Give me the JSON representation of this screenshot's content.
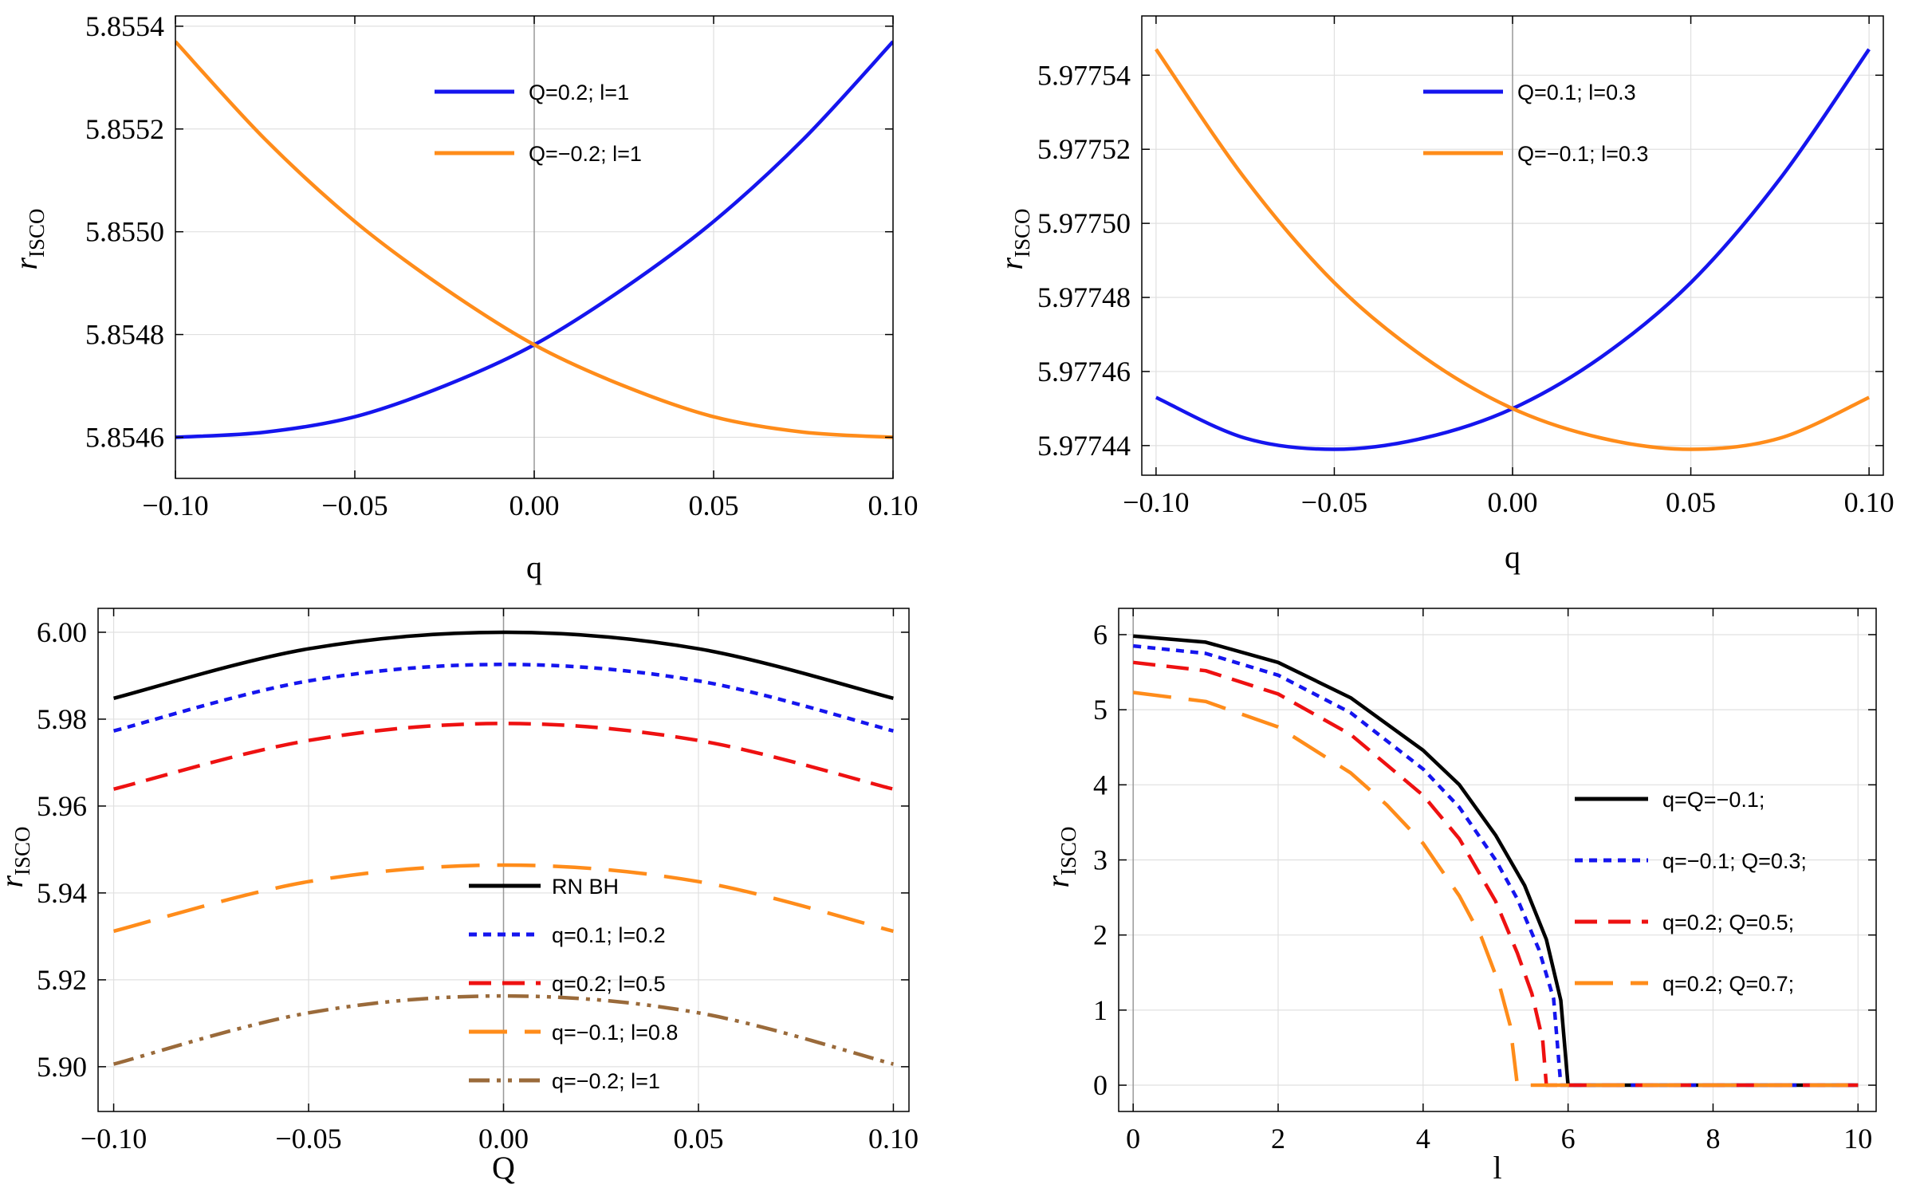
{
  "chart_data": [
    {
      "type": "line",
      "ylabel": "r",
      "ylabel_sub": "ISCO",
      "xlabel": "q",
      "xlim": [
        -0.1,
        0.1
      ],
      "ylim": [
        5.85452,
        5.85542
      ],
      "xticks": [
        -0.1,
        -0.05,
        0.0,
        0.05,
        0.1
      ],
      "xtick_labels": [
        "−0.10",
        "−0.05",
        "0.00",
        "0.05",
        "0.10"
      ],
      "yticks": [
        5.8546,
        5.8548,
        5.855,
        5.8552,
        5.8554
      ],
      "ytick_labels": [
        "5.8546",
        "5.8548",
        "5.8550",
        "5.8552",
        "5.8554"
      ],
      "grid": true,
      "legend_position": "top-center",
      "series": [
        {
          "name": "Q=0.2; l=1",
          "color": "#1515ee",
          "dash": "solid",
          "x": [
            -0.1,
            -0.075,
            -0.05,
            -0.025,
            0.0,
            0.025,
            0.05,
            0.075,
            0.1
          ],
          "values": [
            5.8546,
            5.85461,
            5.85464,
            5.8547,
            5.85478,
            5.85489,
            5.85502,
            5.85518,
            5.85537
          ]
        },
        {
          "name": "Q=−0.2; l=1",
          "color": "#ff8c1a",
          "dash": "solid",
          "x": [
            -0.1,
            -0.075,
            -0.05,
            -0.025,
            0.0,
            0.025,
            0.05,
            0.075,
            0.1
          ],
          "values": [
            5.85537,
            5.85518,
            5.85502,
            5.85489,
            5.85478,
            5.8547,
            5.85464,
            5.85461,
            5.8546
          ]
        }
      ]
    },
    {
      "type": "line",
      "ylabel": "r",
      "ylabel_sub": "ISCO",
      "xlabel": "q",
      "xlim": [
        -0.104,
        0.104
      ],
      "ylim": [
        5.977432,
        5.977556
      ],
      "xticks": [
        -0.1,
        -0.05,
        0.0,
        0.05,
        0.1
      ],
      "xtick_labels": [
        "−0.10",
        "−0.05",
        "0.00",
        "0.05",
        "0.10"
      ],
      "yticks": [
        5.97744,
        5.97746,
        5.97748,
        5.9775,
        5.97752,
        5.97754
      ],
      "ytick_labels": [
        "5.97744",
        "5.97746",
        "5.97748",
        "5.97750",
        "5.97752",
        "5.97754"
      ],
      "grid": true,
      "legend_position": "top-center",
      "series": [
        {
          "name": "Q=0.1; l=0.3",
          "color": "#1515ee",
          "dash": "solid",
          "x": [
            -0.1,
            -0.075,
            -0.05,
            -0.025,
            0.0,
            0.025,
            0.05,
            0.075,
            0.1
          ],
          "values": [
            5.977453,
            5.977442,
            5.977439,
            5.977442,
            5.97745,
            5.977464,
            5.977484,
            5.977512,
            5.977547
          ]
        },
        {
          "name": "Q=−0.1; l=0.3",
          "color": "#ff8c1a",
          "dash": "solid",
          "x": [
            -0.1,
            -0.075,
            -0.05,
            -0.025,
            0.0,
            0.025,
            0.05,
            0.075,
            0.1
          ],
          "values": [
            5.977547,
            5.977512,
            5.977484,
            5.977464,
            5.97745,
            5.977442,
            5.977439,
            5.977442,
            5.977453
          ]
        }
      ]
    },
    {
      "type": "line",
      "ylabel": "r",
      "ylabel_sub": "ISCO",
      "xlabel": "Q",
      "xlim": [
        -0.104,
        0.104
      ],
      "ylim": [
        5.8897,
        6.0055
      ],
      "xticks": [
        -0.1,
        -0.05,
        0.0,
        0.05,
        0.1
      ],
      "xtick_labels": [
        "−0.10",
        "−0.05",
        "0.00",
        "0.05",
        "0.10"
      ],
      "yticks": [
        5.9,
        5.92,
        5.94,
        5.96,
        5.98,
        6.0
      ],
      "ytick_labels": [
        "5.90",
        "5.92",
        "5.94",
        "5.96",
        "5.98",
        "6.00"
      ],
      "grid": true,
      "legend_position": "bottom-center",
      "series": [
        {
          "name": "RN BH",
          "color": "#000000",
          "dash": "solid",
          "x": [
            -0.1,
            -0.05,
            0.0,
            0.05,
            0.1
          ],
          "values": [
            5.9848,
            5.9962,
            6.0,
            5.9962,
            5.9848
          ]
        },
        {
          "name": "q=0.1; l=0.2",
          "color": "#1515ee",
          "dash": "dotted",
          "x": [
            -0.1,
            -0.05,
            0.0,
            0.05,
            0.1
          ],
          "values": [
            5.9773,
            5.9888,
            5.9926,
            5.9888,
            5.9773
          ]
        },
        {
          "name": "q=0.2; l=0.5",
          "color": "#ee1111",
          "dash": "dashed",
          "x": [
            -0.1,
            -0.05,
            0.0,
            0.05,
            0.1
          ],
          "values": [
            5.9639,
            5.9751,
            5.979,
            5.9751,
            5.9639
          ]
        },
        {
          "name": "q=−0.1; l=0.8",
          "color": "#ff8c1a",
          "dash": "longdash",
          "x": [
            -0.1,
            -0.05,
            0.0,
            0.05,
            0.1
          ],
          "values": [
            5.9312,
            5.9426,
            5.9464,
            5.9426,
            5.9312
          ]
        },
        {
          "name": "q=−0.2; l=1",
          "color": "#9a6a3a",
          "dash": "dashdot",
          "x": [
            -0.1,
            -0.05,
            0.0,
            0.05,
            0.1
          ],
          "values": [
            5.9006,
            5.9124,
            5.9163,
            5.9124,
            5.9006
          ]
        }
      ]
    },
    {
      "type": "line",
      "ylabel": "r",
      "ylabel_sub": "ISCO",
      "xlabel": "l",
      "xlim": [
        -0.2,
        10.25
      ],
      "ylim": [
        -0.35,
        6.35
      ],
      "xticks": [
        0,
        2,
        4,
        6,
        8,
        10
      ],
      "xtick_labels": [
        "0",
        "2",
        "4",
        "6",
        "8",
        "10"
      ],
      "yticks": [
        0,
        1,
        2,
        3,
        4,
        5,
        6
      ],
      "ytick_labels": [
        "0",
        "1",
        "2",
        "3",
        "4",
        "5",
        "6"
      ],
      "grid": true,
      "legend_position": "right",
      "series": [
        {
          "name": "q=Q=−0.1;",
          "color": "#000000",
          "dash": "solid",
          "x": [
            0,
            1,
            2,
            3,
            4,
            4.5,
            5,
            5.4,
            5.7,
            5.9,
            6.0,
            6.0,
            10
          ],
          "values": [
            5.98,
            5.9,
            5.63,
            5.16,
            4.46,
            4.0,
            3.33,
            2.66,
            1.94,
            1.13,
            0.0,
            0.0,
            0.0
          ]
        },
        {
          "name": "q=−0.1; Q=0.3;",
          "color": "#1515ee",
          "dash": "dotted",
          "x": [
            0,
            1,
            2,
            3,
            4,
            4.5,
            5,
            5.3,
            5.6,
            5.8,
            5.9,
            5.9,
            10
          ],
          "values": [
            5.85,
            5.75,
            5.46,
            4.96,
            4.21,
            3.7,
            3.0,
            2.48,
            1.8,
            1.15,
            0.0,
            0.0,
            0.0
          ]
        },
        {
          "name": "q=0.2; Q=0.5;",
          "color": "#ee1111",
          "dash": "dashed",
          "x": [
            0,
            1,
            2,
            3,
            4,
            4.5,
            5,
            5.3,
            5.5,
            5.65,
            5.7,
            5.7,
            10
          ],
          "values": [
            5.63,
            5.52,
            5.21,
            4.67,
            3.86,
            3.28,
            2.45,
            1.76,
            1.22,
            0.6,
            0.0,
            0.0,
            0.0
          ]
        },
        {
          "name": "q=0.2; Q=0.7;",
          "color": "#ff8c1a",
          "dash": "longdash",
          "x": [
            0,
            1,
            2,
            3,
            3.5,
            4,
            4.5,
            4.8,
            5.05,
            5.2,
            5.3,
            5.3,
            10
          ],
          "values": [
            5.23,
            5.11,
            4.77,
            4.16,
            3.73,
            3.22,
            2.52,
            1.98,
            1.34,
            0.8,
            0.0,
            0.0,
            0.0
          ]
        }
      ]
    }
  ]
}
